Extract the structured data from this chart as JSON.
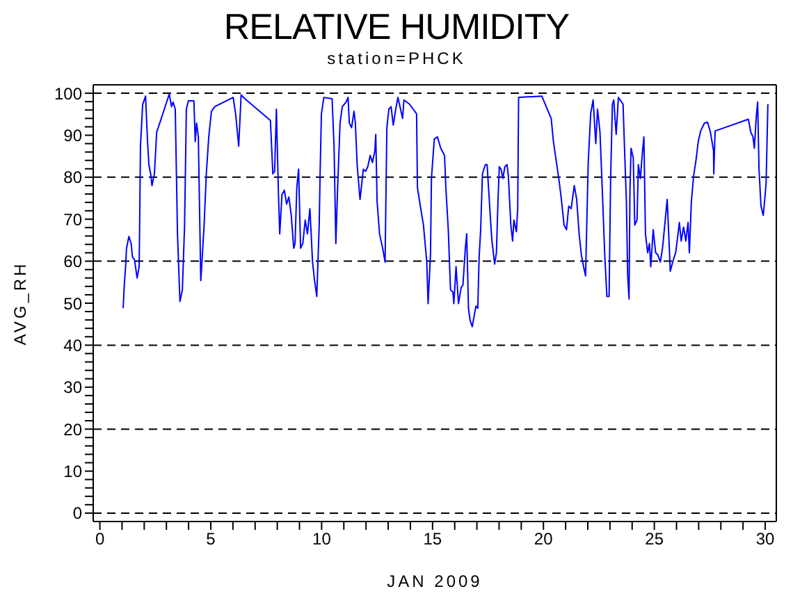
{
  "chart_data": {
    "type": "line",
    "title": "RELATIVE HUMIDITY",
    "subtitle": "station=PHCK",
    "xlabel": "JAN 2009",
    "ylabel": "AVG_RH",
    "xlim": [
      -0.3,
      30.5
    ],
    "ylim": [
      -2,
      102
    ],
    "xticks": [
      0,
      {
        "value": 1,
        "label": null
      },
      {
        "value": 2,
        "label": null
      },
      {
        "value": 3,
        "label": null
      },
      {
        "value": 4,
        "label": null
      },
      5,
      {
        "value": 6,
        "label": null
      },
      {
        "value": 7,
        "label": null
      },
      {
        "value": 8,
        "label": null
      },
      {
        "value": 9,
        "label": null
      },
      10,
      {
        "value": 11,
        "label": null
      },
      {
        "value": 12,
        "label": null
      },
      {
        "value": 13,
        "label": null
      },
      {
        "value": 14,
        "label": null
      },
      15,
      {
        "value": 16,
        "label": null
      },
      {
        "value": 17,
        "label": null
      },
      {
        "value": 18,
        "label": null
      },
      {
        "value": 19,
        "label": null
      },
      20,
      {
        "value": 21,
        "label": null
      },
      {
        "value": 22,
        "label": null
      },
      {
        "value": 23,
        "label": null
      },
      {
        "value": 24,
        "label": null
      },
      25,
      {
        "value": 26,
        "label": null
      },
      {
        "value": 27,
        "label": null
      },
      {
        "value": 28,
        "label": null
      },
      {
        "value": 29,
        "label": null
      },
      30
    ],
    "yticks": [
      0,
      {
        "value": 2,
        "label": null
      },
      {
        "value": 4,
        "label": null
      },
      {
        "value": 6,
        "label": null
      },
      {
        "value": 8,
        "label": null
      },
      10,
      {
        "value": 12,
        "label": null
      },
      {
        "value": 14,
        "label": null
      },
      {
        "value": 16,
        "label": null
      },
      {
        "value": 18,
        "label": null
      },
      20,
      {
        "value": 22,
        "label": null
      },
      {
        "value": 24,
        "label": null
      },
      {
        "value": 26,
        "label": null
      },
      {
        "value": 28,
        "label": null
      },
      30,
      {
        "value": 32,
        "label": null
      },
      {
        "value": 34,
        "label": null
      },
      {
        "value": 36,
        "label": null
      },
      {
        "value": 38,
        "label": null
      },
      40,
      {
        "value": 42,
        "label": null
      },
      {
        "value": 44,
        "label": null
      },
      {
        "value": 46,
        "label": null
      },
      {
        "value": 48,
        "label": null
      },
      50,
      {
        "value": 52,
        "label": null
      },
      {
        "value": 54,
        "label": null
      },
      {
        "value": 56,
        "label": null
      },
      {
        "value": 58,
        "label": null
      },
      60,
      {
        "value": 62,
        "label": null
      },
      {
        "value": 64,
        "label": null
      },
      {
        "value": 66,
        "label": null
      },
      {
        "value": 68,
        "label": null
      },
      70,
      {
        "value": 72,
        "label": null
      },
      {
        "value": 74,
        "label": null
      },
      {
        "value": 76,
        "label": null
      },
      {
        "value": 78,
        "label": null
      },
      80,
      {
        "value": 82,
        "label": null
      },
      {
        "value": 84,
        "label": null
      },
      {
        "value": 86,
        "label": null
      },
      {
        "value": 88,
        "label": null
      },
      90,
      {
        "value": 92,
        "label": null
      },
      {
        "value": 94,
        "label": null
      },
      {
        "value": 96,
        "label": null
      },
      {
        "value": 98,
        "label": null
      },
      100
    ],
    "ref_lines": [
      {
        "axis": "y",
        "value": 0,
        "color": "#000000",
        "line_style": "dashed"
      },
      {
        "axis": "y",
        "value": 20,
        "color": "#000000",
        "line_style": "dashed"
      },
      {
        "axis": "y",
        "value": 40,
        "color": "#000000",
        "line_style": "dashed"
      },
      {
        "axis": "y",
        "value": 60,
        "color": "#000000",
        "line_style": "dashed"
      },
      {
        "axis": "y",
        "value": 80,
        "color": "#000000",
        "line_style": "dashed"
      },
      {
        "axis": "y",
        "value": 100,
        "color": "#000000",
        "line_style": "dashed"
      }
    ],
    "series": [
      {
        "color": "#0000ff",
        "x": [
          1.05,
          1.1,
          1.16,
          1.2,
          1.31,
          1.41,
          1.47,
          1.56,
          1.68,
          1.77,
          1.79,
          1.83,
          1.93,
          2.06,
          2.15,
          2.21,
          2.29,
          2.35,
          2.46,
          2.56,
          2.77,
          2.98,
          3.13,
          3.23,
          3.3,
          3.4,
          3.5,
          3.61,
          3.72,
          3.82,
          3.9,
          3.99,
          4.24,
          4.3,
          4.36,
          4.44,
          4.55,
          4.61,
          4.7,
          4.8,
          4.91,
          5.03,
          5.18,
          6.01,
          6.12,
          6.26,
          6.37,
          6.54,
          7.69,
          7.8,
          7.88,
          7.96,
          8.05,
          8.11,
          8.21,
          8.32,
          8.42,
          8.52,
          8.63,
          8.74,
          8.8,
          8.88,
          8.96,
          9.05,
          9.15,
          9.26,
          9.36,
          9.47,
          9.59,
          9.68,
          9.78,
          9.89,
          9.93,
          9.99,
          10.1,
          10.47,
          10.56,
          10.64,
          10.72,
          10.83,
          10.93,
          11.1,
          11.19,
          11.25,
          11.35,
          11.46,
          11.52,
          11.6,
          11.73,
          11.81,
          11.88,
          11.98,
          12.08,
          12.19,
          12.29,
          12.4,
          12.44,
          12.5,
          12.61,
          12.75,
          12.86,
          12.94,
          13.03,
          13.13,
          13.23,
          13.34,
          13.44,
          13.65,
          13.71,
          13.96,
          14.28,
          14.32,
          14.45,
          14.59,
          14.74,
          14.8,
          14.91,
          14.95,
          15.08,
          15.22,
          15.37,
          15.54,
          15.6,
          15.71,
          15.81,
          15.92,
          15.96,
          16.06,
          16.17,
          16.29,
          16.37,
          16.48,
          16.54,
          16.62,
          16.69,
          16.79,
          16.9,
          16.96,
          17.04,
          17.1,
          17.17,
          17.25,
          17.38,
          17.46,
          17.59,
          17.67,
          17.8,
          17.88,
          17.95,
          18.01,
          18.09,
          18.17,
          18.26,
          18.36,
          18.42,
          18.53,
          18.61,
          18.67,
          18.78,
          18.84,
          18.88,
          19.93,
          20.35,
          20.45,
          20.6,
          20.72,
          20.81,
          20.93,
          21.04,
          21.14,
          21.25,
          21.39,
          21.5,
          21.61,
          21.71,
          21.81,
          21.9,
          22.02,
          22.13,
          22.24,
          22.36,
          22.44,
          22.55,
          22.65,
          22.76,
          22.86,
          22.96,
          23.03,
          23.11,
          23.17,
          23.28,
          23.38,
          23.59,
          23.66,
          23.74,
          23.8,
          23.86,
          23.9,
          23.95,
          24.05,
          24.12,
          24.22,
          24.28,
          24.37,
          24.47,
          24.53,
          24.6,
          24.7,
          24.78,
          24.84,
          24.95,
          25.06,
          25.16,
          25.27,
          25.37,
          25.47,
          25.58,
          25.64,
          25.72,
          25.83,
          25.96,
          26.04,
          26.13,
          26.21,
          26.32,
          26.42,
          26.52,
          26.58,
          26.67,
          26.77,
          26.88,
          26.98,
          27.09,
          27.26,
          27.4,
          27.53,
          27.67,
          27.68,
          27.74,
          29.24,
          29.35,
          29.45,
          29.51,
          29.6,
          29.66,
          29.72,
          29.81,
          29.91,
          29.97,
          30.04,
          30.12
        ],
        "values": [
          48.8,
          54.3,
          58.7,
          63,
          65.9,
          64.2,
          61,
          60.4,
          56,
          58.7,
          66.5,
          87.4,
          97.3,
          99.3,
          88.5,
          83,
          80.8,
          78,
          80.8,
          90.7,
          94,
          97.4,
          99.8,
          96.8,
          97.9,
          96.2,
          66.5,
          50.4,
          53.2,
          68.6,
          96.2,
          98.2,
          98.2,
          88.5,
          92.9,
          89.6,
          55.4,
          60.4,
          68.6,
          80.8,
          89.6,
          95.7,
          96.8,
          99,
          95.1,
          87.4,
          99.6,
          98.7,
          93.5,
          80.8,
          81.4,
          96.2,
          76.4,
          66.5,
          75.8,
          76.9,
          73.6,
          75.3,
          70.9,
          63.1,
          64.2,
          77.5,
          81.9,
          63.1,
          64.2,
          69.8,
          66.5,
          72.5,
          59.8,
          55.4,
          51.6,
          68.6,
          80.8,
          95.1,
          99,
          98.7,
          87.4,
          64.2,
          77.5,
          92.9,
          96.8,
          97.9,
          99,
          92.9,
          91.8,
          95.7,
          92.9,
          83,
          74.7,
          78.6,
          81.9,
          81.4,
          82.5,
          85.2,
          83.5,
          86.3,
          90.2,
          74.2,
          66.5,
          63.1,
          59.8,
          91.8,
          96.2,
          96.8,
          92.4,
          96.2,
          99,
          94,
          98.4,
          97.4,
          95.1,
          77.5,
          73.1,
          68.6,
          59.8,
          49.9,
          62,
          79.7,
          89.1,
          89.6,
          86.9,
          85.2,
          77.5,
          67.5,
          53.2,
          52.6,
          49.9,
          58.7,
          49.9,
          53.7,
          54.3,
          63.1,
          66.5,
          48.8,
          46,
          44.4,
          47.7,
          49.3,
          48.8,
          60.9,
          67.5,
          80.8,
          83,
          83,
          71.9,
          65.3,
          59.3,
          62,
          74.2,
          82.5,
          81.9,
          79.7,
          82.5,
          83,
          80.2,
          68.6,
          64.8,
          69.8,
          67,
          72.5,
          99,
          99.3,
          94,
          88.5,
          83,
          78.6,
          74.7,
          68.6,
          67.5,
          73.1,
          72.5,
          78,
          74.7,
          66.5,
          61.5,
          58.7,
          56.5,
          83.5,
          95.1,
          98.4,
          88,
          96.2,
          90.7,
          77.5,
          62,
          51.6,
          51.6,
          79.7,
          97.4,
          98.4,
          90.2,
          99,
          97.4,
          86.3,
          74.2,
          56.5,
          51,
          76.4,
          86.9,
          84.6,
          68.6,
          69.8,
          83,
          79.7,
          86.3,
          89.6,
          66.5,
          62,
          64.2,
          58.7,
          67.5,
          62,
          61.5,
          59.8,
          63.1,
          68.6,
          74.7,
          67.5,
          57.6,
          59.8,
          62,
          65.3,
          69.2,
          64.8,
          68.1,
          64.8,
          69.2,
          62,
          74.2,
          80.2,
          84.1,
          88.5,
          91,
          92.9,
          93.1,
          90.7,
          86.3,
          80.8,
          91,
          93.8,
          90.7,
          89.6,
          86.9,
          94.6,
          97.9,
          81.9,
          73.1,
          70.9,
          74.2,
          78.6,
          97.4
        ]
      }
    ]
  }
}
